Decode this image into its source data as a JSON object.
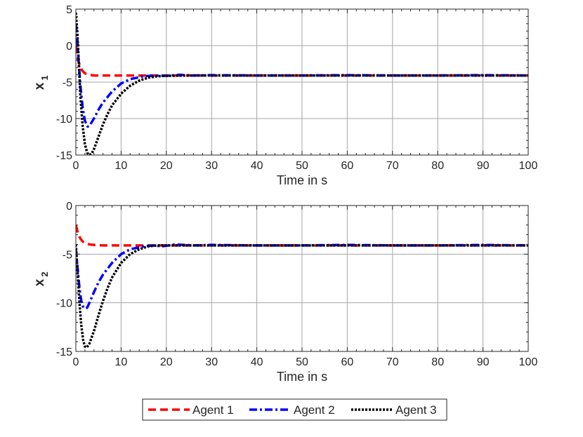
{
  "chart_data": [
    {
      "type": "line",
      "ylabel": "x",
      "ylabel_sub": "1",
      "xlabel": "Time in s",
      "xlim": [
        0,
        100
      ],
      "ylim": [
        -15,
        5
      ],
      "xticks": [
        0,
        10,
        20,
        30,
        40,
        50,
        60,
        70,
        80,
        90,
        100
      ],
      "yticks": [
        -15,
        -10,
        -5,
        0,
        5
      ],
      "grid": true,
      "series": [
        {
          "name": "Agent 1",
          "color": "#ff0000",
          "style": "dashed",
          "points": [
            [
              0,
              0
            ],
            [
              0.5,
              -2.0
            ],
            [
              1,
              -3.0
            ],
            [
              1.5,
              -3.5
            ],
            [
              2,
              -3.8
            ],
            [
              3,
              -4.0
            ],
            [
              4,
              -4.1
            ],
            [
              6,
              -4.1
            ],
            [
              10,
              -4.1
            ],
            [
              20,
              -4.1
            ],
            [
              50,
              -4.1
            ],
            [
              100,
              -4.1
            ]
          ]
        },
        {
          "name": "Agent 2",
          "color": "#0000ff",
          "style": "dashdot",
          "points": [
            [
              0,
              3.0
            ],
            [
              0.3,
              1.0
            ],
            [
              0.6,
              -2.0
            ],
            [
              1,
              -5.5
            ],
            [
              1.5,
              -8.5
            ],
            [
              2,
              -10.3
            ],
            [
              2.6,
              -11.1
            ],
            [
              3,
              -11.0
            ],
            [
              4,
              -10.0
            ],
            [
              5,
              -8.8
            ],
            [
              6,
              -7.8
            ],
            [
              8,
              -6.3
            ],
            [
              10,
              -5.2
            ],
            [
              12,
              -4.6
            ],
            [
              15,
              -4.2
            ],
            [
              18,
              -4.1
            ],
            [
              20,
              -4.15
            ],
            [
              23,
              -4.0
            ],
            [
              26,
              -4.1
            ],
            [
              30,
              -4.05
            ],
            [
              40,
              -4.1
            ],
            [
              50,
              -4.1
            ],
            [
              60,
              -4.05
            ],
            [
              70,
              -4.1
            ],
            [
              80,
              -4.1
            ],
            [
              90,
              -4.05
            ],
            [
              100,
              -4.1
            ]
          ]
        },
        {
          "name": "Agent 3",
          "color": "#000000",
          "style": "dotted",
          "points": [
            [
              0,
              4.5
            ],
            [
              0.3,
              2.0
            ],
            [
              0.7,
              -3.0
            ],
            [
              1,
              -7.0
            ],
            [
              1.5,
              -11.0
            ],
            [
              2,
              -13.5
            ],
            [
              2.5,
              -14.7
            ],
            [
              3,
              -15.0
            ],
            [
              3.5,
              -14.8
            ],
            [
              4,
              -14.2
            ],
            [
              5,
              -12.5
            ],
            [
              6,
              -10.8
            ],
            [
              7,
              -9.4
            ],
            [
              8,
              -8.2
            ],
            [
              10,
              -6.6
            ],
            [
              12,
              -5.5
            ],
            [
              14,
              -4.8
            ],
            [
              16,
              -4.4
            ],
            [
              18,
              -4.2
            ],
            [
              20,
              -4.15
            ],
            [
              25,
              -4.1
            ],
            [
              30,
              -4.1
            ],
            [
              50,
              -4.1
            ],
            [
              100,
              -4.1
            ]
          ]
        }
      ]
    },
    {
      "type": "line",
      "ylabel": "x",
      "ylabel_sub": "2",
      "xlabel": "Time in s",
      "xlim": [
        0,
        100
      ],
      "ylim": [
        -15,
        0
      ],
      "xticks": [
        0,
        10,
        20,
        30,
        40,
        50,
        60,
        70,
        80,
        90,
        100
      ],
      "yticks": [
        -15,
        -10,
        -5,
        0
      ],
      "grid": true,
      "series": [
        {
          "name": "Agent 1",
          "color": "#ff0000",
          "style": "dashed",
          "points": [
            [
              0,
              -2.0
            ],
            [
              0.5,
              -2.9
            ],
            [
              1,
              -3.4
            ],
            [
              1.5,
              -3.7
            ],
            [
              2,
              -3.85
            ],
            [
              3,
              -4.0
            ],
            [
              4,
              -4.05
            ],
            [
              6,
              -4.1
            ],
            [
              10,
              -4.1
            ],
            [
              20,
              -4.1
            ],
            [
              50,
              -4.1
            ],
            [
              100,
              -4.1
            ]
          ]
        },
        {
          "name": "Agent 2",
          "color": "#0000ff",
          "style": "dashdot",
          "points": [
            [
              0,
              -4.5
            ],
            [
              0.4,
              -6.5
            ],
            [
              0.8,
              -8.5
            ],
            [
              1.2,
              -9.8
            ],
            [
              1.6,
              -10.4
            ],
            [
              2,
              -10.6
            ],
            [
              2.5,
              -10.5
            ],
            [
              3,
              -10.0
            ],
            [
              4,
              -8.9
            ],
            [
              5,
              -7.9
            ],
            [
              6,
              -7.1
            ],
            [
              8,
              -5.9
            ],
            [
              10,
              -5.0
            ],
            [
              12,
              -4.5
            ],
            [
              15,
              -4.2
            ],
            [
              17,
              -4.1
            ],
            [
              19,
              -4.2
            ],
            [
              22,
              -4.0
            ],
            [
              26,
              -4.1
            ],
            [
              30,
              -4.05
            ],
            [
              40,
              -4.1
            ],
            [
              50,
              -4.1
            ],
            [
              60,
              -4.05
            ],
            [
              70,
              -4.1
            ],
            [
              80,
              -4.1
            ],
            [
              90,
              -4.05
            ],
            [
              100,
              -4.1
            ]
          ]
        },
        {
          "name": "Agent 3",
          "color": "#000000",
          "style": "dotted",
          "points": [
            [
              0,
              -4.0
            ],
            [
              0.4,
              -7.0
            ],
            [
              0.8,
              -10.0
            ],
            [
              1.2,
              -12.3
            ],
            [
              1.6,
              -13.8
            ],
            [
              2,
              -14.5
            ],
            [
              2.4,
              -14.6
            ],
            [
              3,
              -14.2
            ],
            [
              4,
              -12.9
            ],
            [
              5,
              -11.3
            ],
            [
              6,
              -9.8
            ],
            [
              7,
              -8.5
            ],
            [
              8,
              -7.4
            ],
            [
              10,
              -5.9
            ],
            [
              12,
              -5.0
            ],
            [
              14,
              -4.5
            ],
            [
              16,
              -4.2
            ],
            [
              18,
              -4.1
            ],
            [
              20,
              -4.1
            ],
            [
              25,
              -4.1
            ],
            [
              30,
              -4.1
            ],
            [
              50,
              -4.1
            ],
            [
              100,
              -4.1
            ]
          ]
        }
      ]
    }
  ],
  "legend": {
    "placement": "bottom-center",
    "items": [
      "Agent 1",
      "Agent 2",
      "Agent 3"
    ]
  }
}
